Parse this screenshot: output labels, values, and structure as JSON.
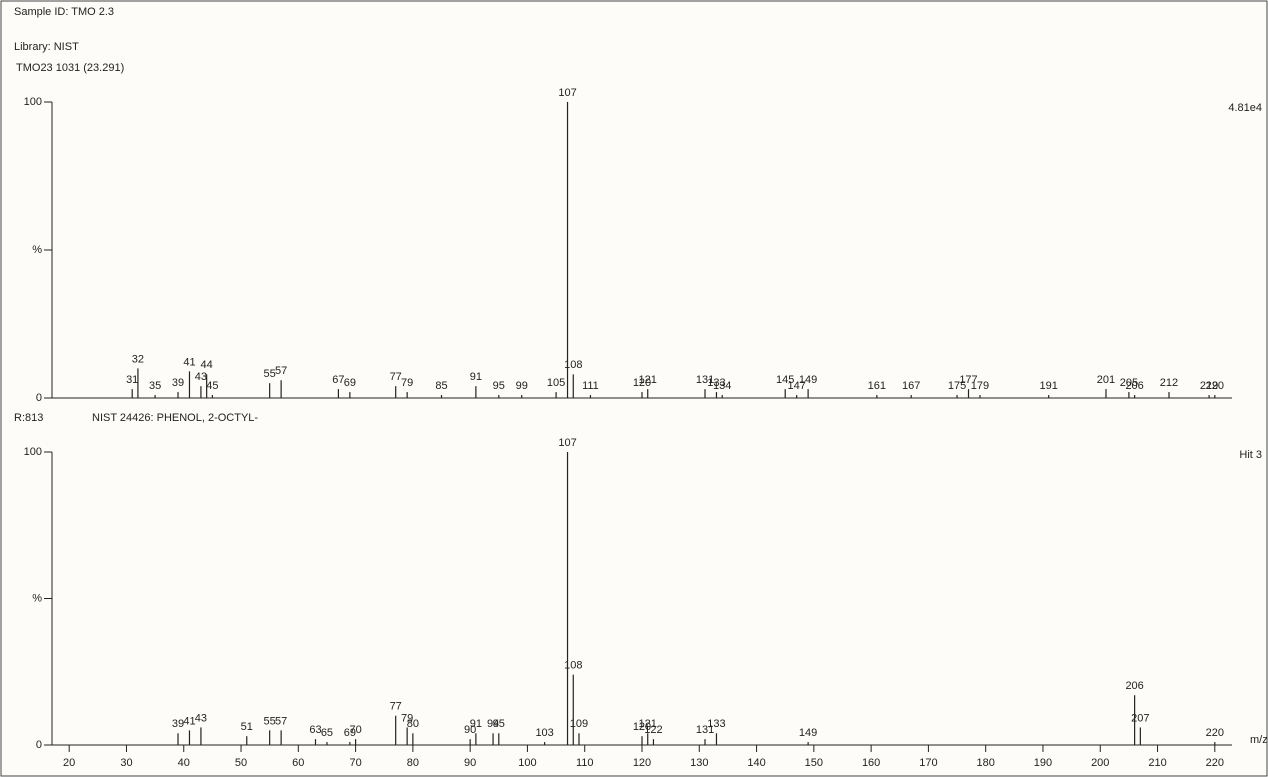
{
  "header": {
    "sample_id": "Sample ID: TMO 2.3",
    "library": "Library: NIST"
  },
  "chart_data": [
    {
      "type": "bar",
      "title": "TMO23 1031 (23.291)",
      "annotation": "4.81e4",
      "x": [
        31,
        32,
        35,
        39,
        41,
        43,
        44,
        45,
        55,
        57,
        67,
        69,
        77,
        79,
        85,
        91,
        95,
        99,
        105,
        107,
        108,
        111,
        120,
        121,
        131,
        133,
        134,
        145,
        147,
        149,
        161,
        167,
        175,
        177,
        179,
        191,
        201,
        205,
        206,
        212,
        219,
        220
      ],
      "values": [
        3,
        10,
        1,
        2,
        9,
        4,
        8,
        1,
        5,
        6,
        3,
        2,
        4,
        2,
        1,
        4,
        1,
        1,
        2,
        100,
        8,
        1,
        2,
        3,
        3,
        2,
        1,
        3,
        1,
        3,
        1,
        1,
        1,
        3,
        1,
        1,
        3,
        2,
        1,
        2,
        1,
        1
      ],
      "color": "#222222",
      "xlim": [
        17,
        223
      ],
      "ylim": [
        0,
        100
      ],
      "yticks": [
        0,
        {
          "value": 50,
          "label": "%"
        },
        100
      ]
    },
    {
      "type": "bar",
      "subtitle": "R:813",
      "title": "NIST 24426: PHENOL, 2-OCTYL-",
      "annotation": "Hit 3",
      "xlabel": "m/z",
      "x": [
        39,
        41,
        43,
        51,
        55,
        57,
        63,
        65,
        69,
        70,
        77,
        79,
        80,
        90,
        91,
        94,
        95,
        103,
        107,
        108,
        109,
        120,
        121,
        122,
        131,
        133,
        149,
        206,
        207,
        220
      ],
      "values": [
        4,
        5,
        6,
        3,
        5,
        5,
        2,
        1,
        1,
        2,
        10,
        6,
        4,
        2,
        4,
        4,
        4,
        1,
        100,
        24,
        4,
        3,
        4,
        2,
        2,
        4,
        1,
        17,
        6,
        1
      ],
      "color": "#222222",
      "xlim": [
        17,
        223
      ],
      "ylim": [
        0,
        100
      ],
      "yticks": [
        0,
        {
          "value": 50,
          "label": "%"
        },
        100
      ],
      "xticks": [
        20,
        30,
        40,
        50,
        60,
        70,
        80,
        90,
        100,
        110,
        120,
        130,
        140,
        150,
        160,
        170,
        180,
        190,
        200,
        210,
        220
      ]
    }
  ]
}
